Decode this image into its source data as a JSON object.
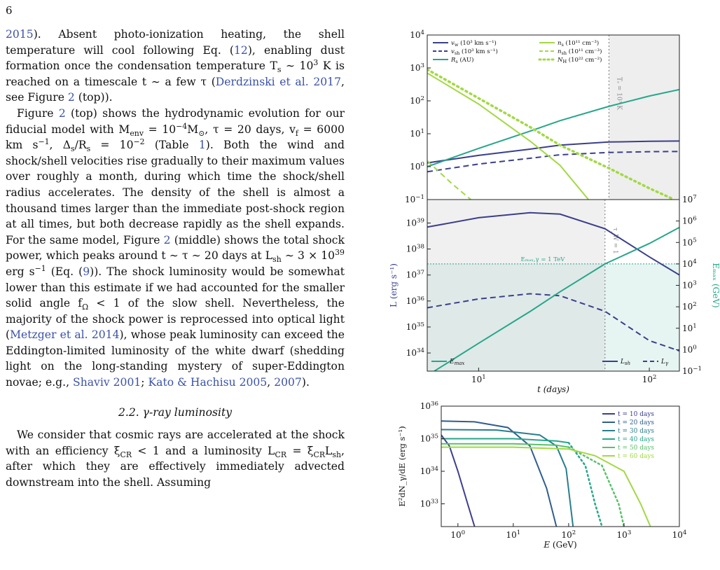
{
  "page": {
    "number": "6"
  },
  "paragraphs": [
    {
      "segments": [
        {
          "t": "2015",
          "link": true
        },
        {
          "t": "). Absent photo-ionization heating, the shell temperature will cool following Eq. ("
        },
        {
          "t": "12",
          "link": true
        },
        {
          "t": "), enabling dust formation once the condensation temperature T"
        },
        {
          "t": "s",
          "sub": true
        },
        {
          "t": " ∼ 10"
        },
        {
          "t": "3",
          "sup": true
        },
        {
          "t": " K is reached on a timescale t ∼ a few τ ("
        },
        {
          "t": "Derdzinski et al. 2017",
          "link": true
        },
        {
          "t": ", see Figure "
        },
        {
          "t": "2",
          "link": true
        },
        {
          "t": " (top))."
        }
      ]
    },
    {
      "indent": true,
      "segments": [
        {
          "t": "Figure "
        },
        {
          "t": "2",
          "link": true
        },
        {
          "t": " (top) shows the hydrodynamic evolution for our fiducial model with M"
        },
        {
          "t": "env",
          "sub": true
        },
        {
          "t": " = 10"
        },
        {
          "t": "−4",
          "sup": true
        },
        {
          "t": "M"
        },
        {
          "t": "⊙",
          "sub": true
        },
        {
          "t": ", τ = 20 days, v"
        },
        {
          "t": "f",
          "sub": true
        },
        {
          "t": " = 6000 km s"
        },
        {
          "t": "−1",
          "sup": true
        },
        {
          "t": ", Δ"
        },
        {
          "t": "s",
          "sub": true
        },
        {
          "t": "/R"
        },
        {
          "t": "s",
          "sub": true
        },
        {
          "t": " = 10"
        },
        {
          "t": "−2",
          "sup": true
        },
        {
          "t": " (Table "
        },
        {
          "t": "1",
          "link": true
        },
        {
          "t": "). Both the wind and shock/shell velocities rise gradually to their maximum values over roughly a month, during which time the shock/shell radius accelerates. The density of the shell is almost a thousand times larger than the immediate post-shock region at all times, but both decrease rapidly as the shell expands. For the same model, Figure "
        },
        {
          "t": "2",
          "link": true
        },
        {
          "t": " (middle) shows the total shock power, which peaks around t ∼ τ ∼ 20 days at L"
        },
        {
          "t": "sh",
          "sub": true
        },
        {
          "t": " ∼ 3 × 10"
        },
        {
          "t": "39",
          "sup": true
        },
        {
          "t": " erg s"
        },
        {
          "t": "−1",
          "sup": true
        },
        {
          "t": " (Eq. ("
        },
        {
          "t": "9",
          "link": true
        },
        {
          "t": ")). The shock luminosity would be somewhat lower than this estimate if we had accounted for the smaller solid angle f"
        },
        {
          "t": "Ω",
          "sub": true
        },
        {
          "t": " < 1 of the slow shell. Nevertheless, the majority of the shock power is reprocessed into optical light ("
        },
        {
          "t": "Metzger et al. 2014",
          "link": true
        },
        {
          "t": "), whose peak luminosity can exceed the Eddington-limited luminosity of the white dwarf (shedding light on the long-standing mystery of super-Eddington novae; e.g., "
        },
        {
          "t": "Shaviv 2001",
          "link": true
        },
        {
          "t": "; "
        },
        {
          "t": "Kato & Hachisu 2005",
          "link": true
        },
        {
          "t": ", "
        },
        {
          "t": "2007",
          "link": true
        },
        {
          "t": ")."
        }
      ]
    },
    {
      "heading": "2.2.  γ-ray luminosity"
    },
    {
      "indent": true,
      "segments": [
        {
          "t": "We consider that cosmic rays are accelerated at the shock with an efficiency ξ"
        },
        {
          "t": "CR",
          "sub": true
        },
        {
          "t": " < 1 and a luminosity L"
        },
        {
          "t": "CR",
          "sub": true
        },
        {
          "t": " = ξ"
        },
        {
          "t": "CR",
          "sub": true
        },
        {
          "t": "L"
        },
        {
          "t": "sh",
          "sub": true
        },
        {
          "t": ", after which they are effectively immediately advected downstream into the shell. Assuming"
        }
      ]
    }
  ],
  "chart_data": [
    {
      "type": "line",
      "name": "hydro",
      "xscale": "log",
      "yscale": "log",
      "xlim": [
        5,
        150
      ],
      "ylim": [
        0.1,
        10000
      ],
      "yticks": [
        {
          "v": 0.1,
          "b": "10",
          "e": "−1"
        },
        {
          "v": 1,
          "b": "10",
          "e": "0"
        },
        {
          "v": 10,
          "b": "10",
          "e": "1"
        },
        {
          "v": 100,
          "b": "10",
          "e": "2"
        },
        {
          "v": 1000,
          "b": "10",
          "e": "3"
        },
        {
          "v": 10000,
          "b": "10",
          "e": "4"
        }
      ],
      "legend": {
        "placement": "top",
        "entries": [
          {
            "color": "#3b3f8c",
            "dash": "solid",
            "label": "v",
            "sub": "w",
            "rest": " (10³ km s⁻¹)"
          },
          {
            "color": "#3b3f8c",
            "dash": "dashed",
            "label": "v",
            "sub": "sh",
            "rest": " (10³ km s⁻¹)"
          },
          {
            "color": "#26a68a",
            "dash": "solid",
            "label": "R",
            "sub": "s",
            "rest": " (AU)"
          },
          {
            "color": "#a2d943",
            "dash": "solid",
            "label": "n",
            "sub": "s",
            "rest": " (10¹¹ cm⁻³)"
          },
          {
            "color": "#a2d943",
            "dash": "dashed",
            "label": "n",
            "sub": "sh",
            "rest": " (10¹¹ cm⁻³)"
          },
          {
            "color": "#a2d943",
            "dash": "dotted",
            "label": "N",
            "sub": "H",
            "rest": " (10²² cm⁻²)"
          }
        ]
      },
      "vline": {
        "x": 58,
        "label": "Tₛ = 10³ K"
      },
      "shade": {
        "from": 58,
        "to": 150,
        "color": "#eeeeee"
      },
      "series": [
        {
          "name": "v_w",
          "color": "#3b3f8c",
          "dash": "solid",
          "x": [
            5,
            10,
            20,
            30,
            58,
            100,
            150
          ],
          "y": [
            1.3,
            2.2,
            3.4,
            4.5,
            5.6,
            5.9,
            6.0
          ]
        },
        {
          "name": "v_sh",
          "color": "#3b3f8c",
          "dash": "dashed",
          "x": [
            5,
            10,
            20,
            30,
            58,
            100,
            150
          ],
          "y": [
            0.7,
            1.2,
            1.8,
            2.3,
            2.7,
            2.85,
            2.9
          ]
        },
        {
          "name": "R_s",
          "color": "#26a68a",
          "dash": "solid",
          "x": [
            5,
            10,
            20,
            30,
            58,
            100,
            150
          ],
          "y": [
            1.0,
            3.6,
            12,
            25,
            68,
            140,
            220
          ]
        },
        {
          "name": "n_s",
          "color": "#a2d943",
          "dash": "solid",
          "x": [
            5,
            10,
            20,
            30,
            44
          ],
          "y": [
            700,
            80,
            6,
            1.1,
            0.1
          ]
        },
        {
          "name": "n_sh",
          "color": "#a2d943",
          "dash": "dashed",
          "x": [
            5,
            7,
            9
          ],
          "y": [
            1.5,
            0.3,
            0.1
          ]
        },
        {
          "name": "N_H",
          "color": "#a2d943",
          "dash": "dotted",
          "x": [
            5,
            10,
            20,
            30,
            58,
            100,
            140
          ],
          "y": [
            900,
            120,
            16,
            4.5,
            0.9,
            0.22,
            0.1
          ]
        }
      ]
    },
    {
      "type": "line",
      "name": "luminosity",
      "xscale": "log",
      "yscale": "log",
      "xlim": [
        5,
        150
      ],
      "ylim": [
        2e+33,
        8e+39
      ],
      "xlabel": "t (days)",
      "ylabel": "L (erg s⁻¹)",
      "y2label": "Eₘₐₓ (GeV)",
      "y2lim": [
        0.1,
        10000000.0
      ],
      "xticks": [
        {
          "v": 10,
          "b": "10",
          "e": "1"
        },
        {
          "v": 100,
          "b": "10",
          "e": "2"
        }
      ],
      "yticks": [
        {
          "v": 1e+34,
          "b": "10",
          "e": "34"
        },
        {
          "v": 1e+35,
          "b": "10",
          "e": "35"
        },
        {
          "v": 1e+36,
          "b": "10",
          "e": "36"
        },
        {
          "v": 1e+37,
          "b": "10",
          "e": "37"
        },
        {
          "v": 1e+38,
          "b": "10",
          "e": "38"
        },
        {
          "v": 1e+39,
          "b": "10",
          "e": "39"
        }
      ],
      "y2ticks": [
        {
          "v": 0.1,
          "b": "10",
          "e": "−1"
        },
        {
          "v": 1,
          "b": "10",
          "e": "0"
        },
        {
          "v": 10,
          "b": "10",
          "e": "1"
        },
        {
          "v": 100,
          "b": "10",
          "e": "2"
        },
        {
          "v": 1000,
          "b": "10",
          "e": "3"
        },
        {
          "v": 10000,
          "b": "10",
          "e": "4"
        },
        {
          "v": 100000,
          "b": "10",
          "e": "5"
        },
        {
          "v": 1000000,
          "b": "10",
          "e": "6"
        },
        {
          "v": 10000000,
          "b": "10",
          "e": "7"
        }
      ],
      "vline": {
        "x": 55,
        "label": "τ_W = 1"
      },
      "shade_left": {
        "from": 5,
        "to": 55,
        "color": "#f0f0f0"
      },
      "hline": {
        "y": 10000.0,
        "axis": "y2",
        "label": "Eₘₐₓ,γ = 1 TeV",
        "color": "#26a68a"
      },
      "legend_left": {
        "color": "#26a68a",
        "label": "E",
        "sub": "max"
      },
      "legend_right": [
        {
          "color": "#3b3f8c",
          "dash": "solid",
          "label": "L",
          "sub": "sh"
        },
        {
          "color": "#3b3f8c",
          "dash": "dashed",
          "label": "L",
          "sub": "γ"
        }
      ],
      "series": [
        {
          "name": "L_sh",
          "color": "#3b3f8c",
          "dash": "solid",
          "axis": "y",
          "x": [
            5,
            10,
            20,
            30,
            55,
            100,
            150
          ],
          "y": [
            7e+38,
            1.6e+39,
            2.5e+39,
            2.2e+39,
            6e+38,
            5e+37,
            1e+37
          ]
        },
        {
          "name": "L_gamma",
          "color": "#3b3f8c",
          "dash": "dashed",
          "axis": "y",
          "x": [
            5,
            10,
            20,
            30,
            55,
            100,
            150
          ],
          "y": [
            5.5e+35,
            1.2e+36,
            1.9e+36,
            1.6e+36,
            4e+35,
            3e+34,
            1.2e+34
          ]
        },
        {
          "name": "E_max",
          "color": "#26a68a",
          "dash": "solid",
          "axis": "y2",
          "x": [
            5.5,
            10,
            20,
            30,
            55,
            100,
            150
          ],
          "y": [
            0.1,
            2,
            60,
            500,
            10000,
            90000,
            500000
          ]
        }
      ]
    },
    {
      "type": "line",
      "name": "spectrum",
      "xscale": "log",
      "yscale": "log",
      "xlim": [
        0.5,
        10000
      ],
      "ylim": [
        2e+32,
        1e+36
      ],
      "xlabel": "E (GeV)",
      "ylabel": "E²dN_γ/dE (erg s⁻¹)",
      "xticks": [
        {
          "v": 1,
          "b": "10",
          "e": "0"
        },
        {
          "v": 10,
          "b": "10",
          "e": "1"
        },
        {
          "v": 100,
          "b": "10",
          "e": "2"
        },
        {
          "v": 1000,
          "b": "10",
          "e": "3"
        },
        {
          "v": 10000,
          "b": "10",
          "e": "4"
        }
      ],
      "yticks": [
        {
          "v": 1e+33,
          "b": "10",
          "e": "33"
        },
        {
          "v": 1e+34,
          "b": "10",
          "e": "34"
        },
        {
          "v": 1e+35,
          "b": "10",
          "e": "35"
        },
        {
          "v": 1e+36,
          "b": "10",
          "e": "36"
        }
      ],
      "legend": {
        "placement": "top-right",
        "entries": [
          {
            "color": "#3b3f8c",
            "label": "t = 10 days"
          },
          {
            "color": "#2f5e8e",
            "label": "t = 20 days"
          },
          {
            "color": "#287e8e",
            "label": "t = 30 days"
          },
          {
            "color": "#26a68a",
            "label": "t = 40 days"
          },
          {
            "color": "#58c26a",
            "label": "t = 50 days"
          },
          {
            "color": "#a2d943",
            "label": "t = 60 days"
          }
        ]
      },
      "series": [
        {
          "name": "t = 10 days",
          "color": "#3b3f8c",
          "x": [
            0.5,
            0.7,
            1,
            1.5,
            2.0
          ],
          "y": [
            1.3e+35,
            6e+34,
            1e+34,
            1e+33,
            2e+32
          ]
        },
        {
          "name": "t = 20 days",
          "color": "#2f5e8e",
          "x": [
            0.5,
            2,
            8,
            20,
            40,
            60
          ],
          "y": [
            3.5e+35,
            3.3e+35,
            2.2e+35,
            6e+34,
            3e+33,
            2e+32
          ]
        },
        {
          "name": "t = 30 days",
          "color": "#287e8e",
          "x": [
            0.5,
            5,
            30,
            60,
            90,
            120
          ],
          "y": [
            1.9e+35,
            1.85e+35,
            1.3e+35,
            6e+34,
            1.2e+34,
            2e+32
          ]
        },
        {
          "name": "t = 40 days",
          "color": "#26a68a",
          "x": [
            0.5,
            10,
            60,
            100
          ],
          "y": [
            1e+35,
            1e+35,
            8.5e+34,
            7.5e+34
          ],
          "dotted": {
            "x": [
              100,
              200,
              300,
              400
            ],
            "y": [
              7.5e+34,
              1.5e+34,
              1e+33,
              2e+32
            ]
          }
        },
        {
          "name": "t = 50 days",
          "color": "#58c26a",
          "x": [
            0.5,
            10,
            60,
            100
          ],
          "y": [
            7e+34,
            7e+34,
            6.3e+34,
            5.5e+34
          ],
          "dotted": {
            "x": [
              100,
              400,
              800,
              1000
            ],
            "y": [
              5.5e+34,
              1.5e+34,
              1e+33,
              2e+32
            ]
          }
        },
        {
          "name": "t = 60 days",
          "color": "#a2d943",
          "x": [
            0.5,
            10,
            100,
            300,
            1000,
            2000,
            3000
          ],
          "y": [
            5.5e+34,
            5.5e+34,
            4.8e+34,
            3e+34,
            1e+34,
            1e+33,
            2e+32
          ]
        }
      ]
    }
  ]
}
